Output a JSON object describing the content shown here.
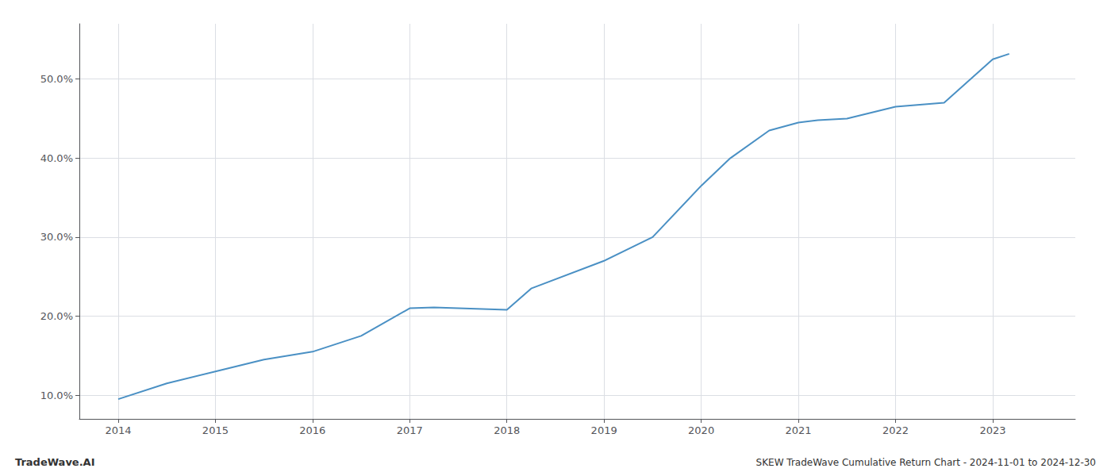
{
  "chart_data": {
    "type": "line",
    "title": "SKEW TradeWave Cumulative Return Chart - 2024-11-01 to 2024-12-30",
    "annotations": [
      "TradeWave.AI"
    ],
    "x": [
      2014,
      2014.5,
      2015,
      2015.5,
      2016,
      2016.5,
      2017,
      2017.25,
      2018,
      2018.25,
      2019,
      2019.5,
      2020,
      2020.3,
      2020.7,
      2021,
      2021.2,
      2021.5,
      2022,
      2022.5,
      2023,
      2023.17
    ],
    "values": [
      9.5,
      11.5,
      13.0,
      14.5,
      15.5,
      17.5,
      21.0,
      21.1,
      20.8,
      23.5,
      27.0,
      30.0,
      36.5,
      40.0,
      43.5,
      44.5,
      44.8,
      45.0,
      46.5,
      47.0,
      52.5,
      53.2
    ],
    "color": "#4a90c4",
    "xlim": [
      2013.6,
      2023.85
    ],
    "xticks": [
      2014,
      2015,
      2016,
      2017,
      2018,
      2019,
      2020,
      2021,
      2022,
      2023
    ],
    "ylim": [
      7.0,
      57.0
    ],
    "yticks": [
      {
        "value": 10.0,
        "label": "10.0%"
      },
      {
        "value": 20.0,
        "label": "20.0%"
      },
      {
        "value": 30.0,
        "label": "30.0%"
      },
      {
        "value": 40.0,
        "label": "40.0%"
      },
      {
        "value": 50.0,
        "label": "50.0%"
      }
    ],
    "grid": true
  }
}
